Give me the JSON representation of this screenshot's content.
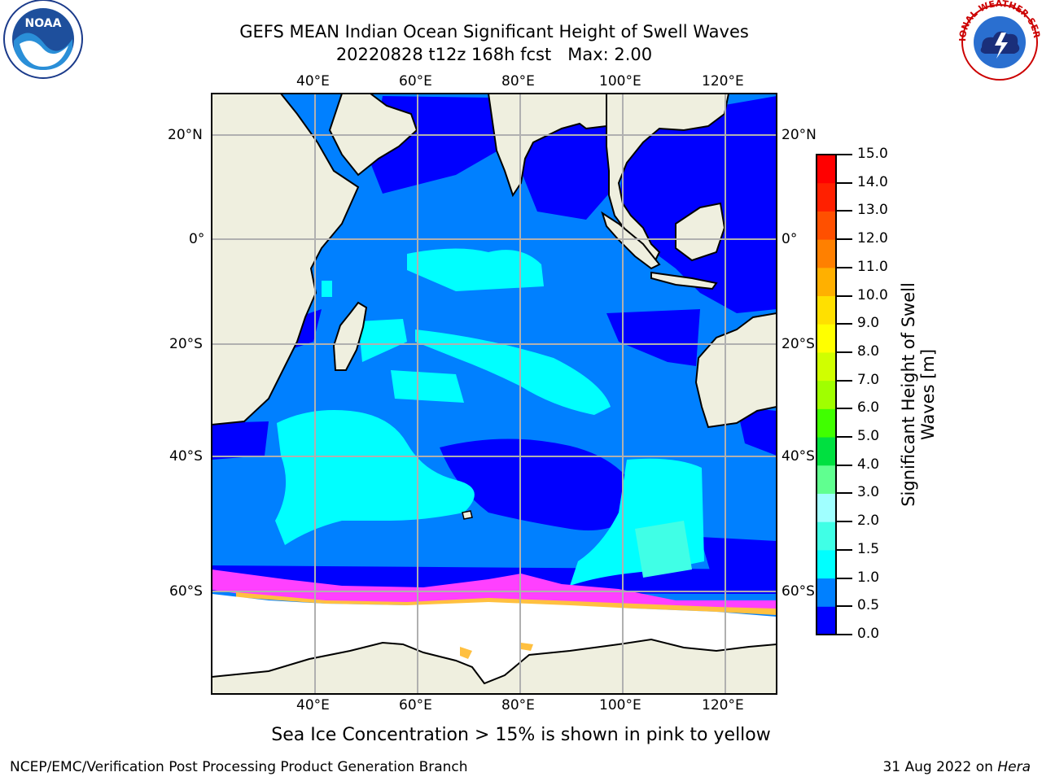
{
  "header": {
    "title_line1": "GEFS MEAN Indian Ocean Significant Height of Swell Waves",
    "title_line2": "20220828 t12z 168h fcst   Max: 2.00"
  },
  "logos": {
    "left": {
      "icon": "noaa-logo-icon",
      "text": "NOAA"
    },
    "right": {
      "icon": "nws-logo-icon",
      "text": "NATIONAL WEATHER SERVICE"
    }
  },
  "map": {
    "lon_labels": [
      "40°E",
      "60°E",
      "80°E",
      "100°E",
      "120°E"
    ],
    "lat_labels": [
      "20°N",
      "0°",
      "20°S",
      "40°S",
      "60°S"
    ],
    "lon_range": [
      20,
      130
    ],
    "lat_range": [
      -76,
      28
    ],
    "colors": {
      "land": "#efefdf",
      "ice": "#ffffff",
      "grid": "#b0b0b0",
      "coast": "#000000"
    }
  },
  "colorbar": {
    "label_line1": "Significant Height of Swell",
    "label_line2": "Waves [m]",
    "ticks": [
      "0.0",
      "0.5",
      "1.0",
      "1.5",
      "2.0",
      "3.0",
      "4.0",
      "5.0",
      "6.0",
      "7.0",
      "8.0",
      "9.0",
      "10.0",
      "11.0",
      "12.0",
      "13.0",
      "14.0",
      "15.0"
    ],
    "colors": [
      "#0000ff",
      "#0080ff",
      "#00ffff",
      "#40ffe6",
      "#a0ffff",
      "#60ff90",
      "#00e040",
      "#40ff00",
      "#a0ff00",
      "#d0ff00",
      "#ffff00",
      "#ffe000",
      "#ffb000",
      "#ff8000",
      "#ff5000",
      "#ff2000",
      "#ff0000"
    ]
  },
  "caption": "Sea Ice Concentration > 15% is shown in pink to yellow",
  "footer": {
    "left": "NCEP/EMC/Verification Post Processing Product Generation Branch",
    "right_prefix": "31 Aug 2022 on ",
    "right_host": "Hera"
  }
}
